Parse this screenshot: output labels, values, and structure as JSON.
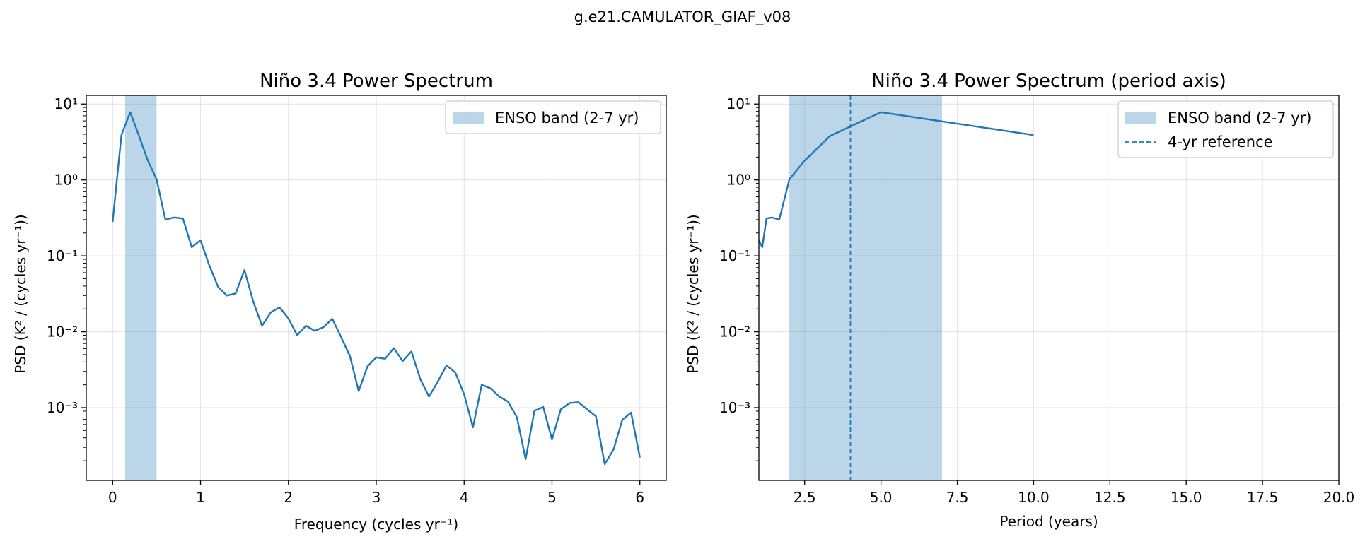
{
  "suptitle": "g.e21.CAMULATOR_GIAF_v08",
  "colors": {
    "series": "#1f77b4",
    "band": "#1f77b4"
  },
  "chart_data": [
    {
      "type": "line",
      "title": "Niño 3.4 Power Spectrum",
      "xlabel": "Frequency (cycles yr⁻¹)",
      "ylabel": "PSD (K² / (cycles yr⁻¹))",
      "xscale": "linear",
      "yscale": "log",
      "xlim": [
        -0.3,
        6.3
      ],
      "ylim": [
        0.00011,
        13
      ],
      "xticks": [
        0,
        1,
        2,
        3,
        4,
        5,
        6
      ],
      "xtick_labels": [
        "0",
        "1",
        "2",
        "3",
        "4",
        "5",
        "6"
      ],
      "yticks": [
        0.001,
        0.01,
        0.1,
        1,
        10
      ],
      "ytick_labels": [
        "10⁻³",
        "10⁻²",
        "10⁻¹",
        "10⁰",
        "10¹"
      ],
      "band": {
        "label": "ENSO band (2-7 yr)",
        "x0": 0.1429,
        "x1": 0.5
      },
      "legend": {
        "position": "top-right",
        "entries": [
          "ENSO band (2-7 yr)"
        ]
      },
      "series": [
        {
          "name": "PSD",
          "x": [
            0.0,
            0.1,
            0.2,
            0.3,
            0.4,
            0.5,
            0.6,
            0.7,
            0.8,
            0.9,
            1.0,
            1.1,
            1.2,
            1.3,
            1.4,
            1.5,
            1.6,
            1.7,
            1.8,
            1.9,
            2.0,
            2.1,
            2.2,
            2.3,
            2.4,
            2.5,
            2.6,
            2.7,
            2.8,
            2.9,
            3.0,
            3.1,
            3.2,
            3.3,
            3.4,
            3.5,
            3.6,
            3.7,
            3.8,
            3.9,
            4.0,
            4.1,
            4.2,
            4.3,
            4.4,
            4.5,
            4.6,
            4.7,
            4.8,
            4.9,
            5.0,
            5.1,
            5.2,
            5.3,
            5.4,
            5.5,
            5.6,
            5.7,
            5.8,
            5.9,
            6.0
          ],
          "y": [
            0.28,
            3.9,
            7.8,
            3.8,
            1.8,
            1.02,
            0.3,
            0.32,
            0.31,
            0.13,
            0.16,
            0.075,
            0.039,
            0.03,
            0.032,
            0.065,
            0.025,
            0.012,
            0.018,
            0.021,
            0.015,
            0.009,
            0.012,
            0.0103,
            0.0115,
            0.0148,
            0.0085,
            0.0048,
            0.00165,
            0.0035,
            0.0046,
            0.0044,
            0.0061,
            0.0041,
            0.0055,
            0.0024,
            0.0014,
            0.0022,
            0.0036,
            0.0029,
            0.0015,
            0.00055,
            0.002,
            0.0018,
            0.0014,
            0.0012,
            0.00075,
            0.00021,
            0.00091,
            0.00102,
            0.00038,
            0.00095,
            0.00115,
            0.00118,
            0.00095,
            0.00077,
            0.00018,
            0.00028,
            0.00069,
            0.00086,
            0.00022
          ]
        }
      ]
    },
    {
      "type": "line",
      "title": "Niño 3.4 Power Spectrum (period axis)",
      "xlabel": "Period (years)",
      "ylabel": "PSD (K² / (cycles yr⁻¹))",
      "xscale": "linear",
      "yscale": "log",
      "xlim": [
        1.0,
        20.0
      ],
      "ylim": [
        0.00011,
        13
      ],
      "xticks": [
        2.5,
        5.0,
        7.5,
        10.0,
        12.5,
        15.0,
        17.5,
        20.0
      ],
      "xtick_labels": [
        "2.5",
        "5.0",
        "7.5",
        "10.0",
        "12.5",
        "15.0",
        "17.5",
        "20.0"
      ],
      "yticks": [
        0.001,
        0.01,
        0.1,
        1,
        10
      ],
      "ytick_labels": [
        "10⁻³",
        "10⁻²",
        "10⁻¹",
        "10⁰",
        "10¹"
      ],
      "band": {
        "label": "ENSO band (2-7 yr)",
        "x0": 2.0,
        "x1": 7.0
      },
      "reference": {
        "label": "4-yr reference",
        "x": 4.0
      },
      "legend": {
        "position": "top-right",
        "entries": [
          "ENSO band (2-7 yr)",
          "4-yr reference"
        ]
      },
      "series": [
        {
          "name": "PSD",
          "x": [
            10.0,
            5.0,
            3.333,
            2.5,
            2.0,
            1.667,
            1.429,
            1.25,
            1.111,
            1.0
          ],
          "y": [
            3.9,
            7.8,
            3.8,
            1.8,
            1.02,
            0.3,
            0.32,
            0.31,
            0.13,
            0.16
          ]
        }
      ]
    }
  ]
}
